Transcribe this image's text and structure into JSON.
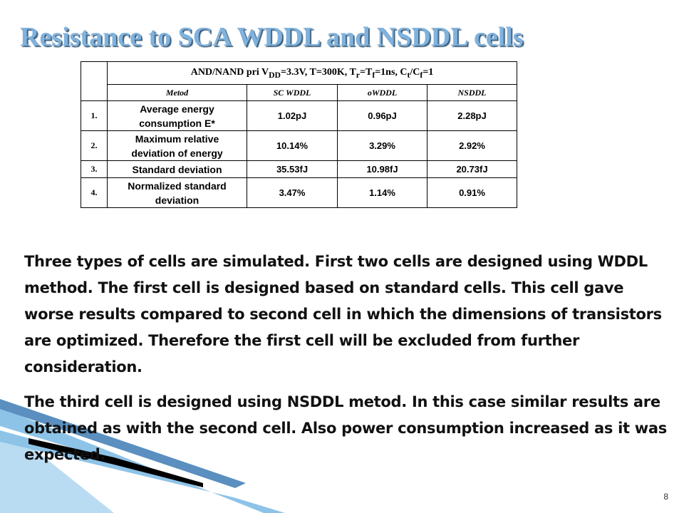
{
  "slide": {
    "title": "Resistance to SCA WDDL and NSDDL cells",
    "page_number": "8"
  },
  "table": {
    "header_main": "AND/NAND pri V",
    "header_sub_dd": "DD",
    "header_mid1": "=3.3V, T=300K, T",
    "header_sub_r": "r",
    "header_eq": "=T",
    "header_sub_f": "f",
    "header_mid2": "=1ns, C",
    "header_sub_t": "t",
    "header_slash": "/C",
    "header_sub_f2": "f",
    "header_end": "=1",
    "columns": [
      "Metod",
      "SC WDDL",
      "oWDDL",
      "NSDDL"
    ],
    "rows": [
      {
        "num": "1.",
        "param_line1": "Average energy",
        "param_line2": "consumption E*",
        "values": [
          "1.02pJ",
          "0.96pJ",
          "2.28pJ"
        ]
      },
      {
        "num": "2.",
        "param_line1": "Maximum relative",
        "param_line2": "deviation of energy",
        "values": [
          "10.14%",
          "3.29%",
          "2.92%"
        ]
      },
      {
        "num": "3.",
        "param_line1": "Standard deviation",
        "param_line2": "",
        "values": [
          "35.53fJ",
          "10.98fJ",
          "20.73fJ"
        ]
      },
      {
        "num": "4.",
        "param_line1": "Normalized standard",
        "param_line2": "deviation",
        "values": [
          "3.47%",
          "1.14%",
          "0.91%"
        ]
      }
    ]
  },
  "body": {
    "paragraph1": "Three types of cells are simulated. First two cells are designed using WDDL method. The first cell is designed based on standard cells. This cell gave worse results compared to second cell in which the dimensions of transistors are optimized. Therefore the first cell will be excluded from further consideration.",
    "paragraph2": "The third cell is designed using NSDDL metod. In this case similar results are obtained as with the second cell. Also power consumption  increased as it was expected."
  },
  "colors": {
    "title": "#7fb2de",
    "title_shadow": "#3f5f7a",
    "deco_dark": "#000000",
    "deco_light": "#8ec3e8"
  }
}
